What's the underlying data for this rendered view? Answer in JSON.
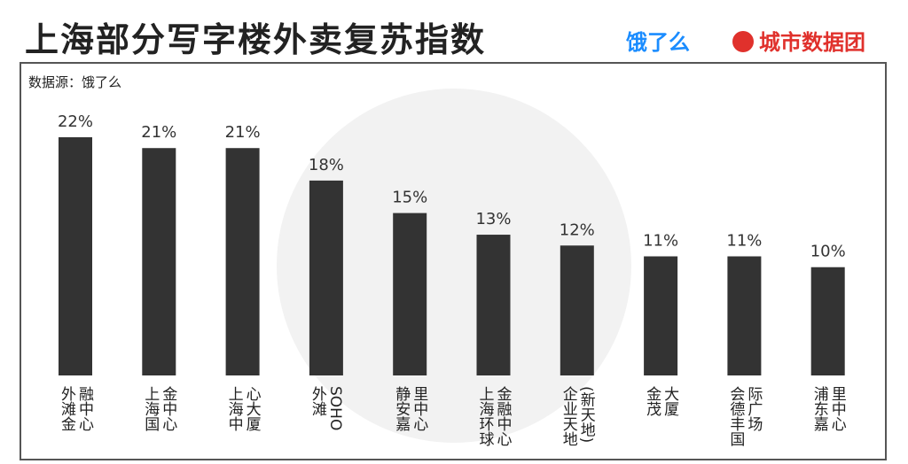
{
  "header": {
    "title": "上海部分写字楼外卖复苏指数",
    "logo_left": "饿了么",
    "logo_right": "城市数据团"
  },
  "chart_data": {
    "type": "bar",
    "source": "数据源：饿了么",
    "categories": [
      "外滩金融中心",
      "上海国金中心",
      "上海中心大厦",
      "外滩SOHO",
      "静安嘉里中心",
      "上海环球金融中心",
      "企业天地(新天地)",
      "金茂大厦",
      "会德丰国际广场",
      "浦东嘉里中心"
    ],
    "values": [
      22,
      21,
      21,
      18,
      15,
      13,
      12,
      11,
      11,
      10
    ],
    "value_labels": [
      "22%",
      "21%",
      "21%",
      "18%",
      "15%",
      "13%",
      "12%",
      "11%",
      "11%",
      "10%"
    ],
    "color": "#333333"
  }
}
